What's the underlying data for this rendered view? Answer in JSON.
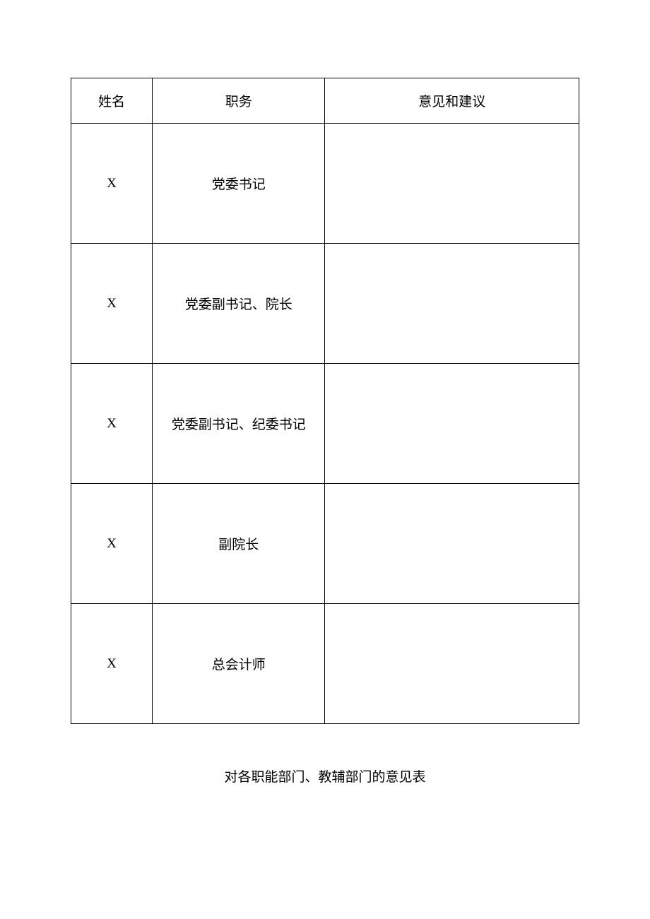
{
  "table": {
    "headers": {
      "name": "姓名",
      "position": "职务",
      "opinion": "意见和建议"
    },
    "rows": [
      {
        "name": "X",
        "position": "党委书记",
        "opinion": ""
      },
      {
        "name": "X",
        "position": "党委副书记、院长",
        "opinion": ""
      },
      {
        "name": "X",
        "position": "党委副书记、纪委书记",
        "opinion": ""
      },
      {
        "name": "X",
        "position": "副院长",
        "opinion": ""
      },
      {
        "name": "X",
        "position": "总会计师",
        "opinion": ""
      }
    ]
  },
  "subtitle": "对各职能部门、教辅部门的意见表"
}
